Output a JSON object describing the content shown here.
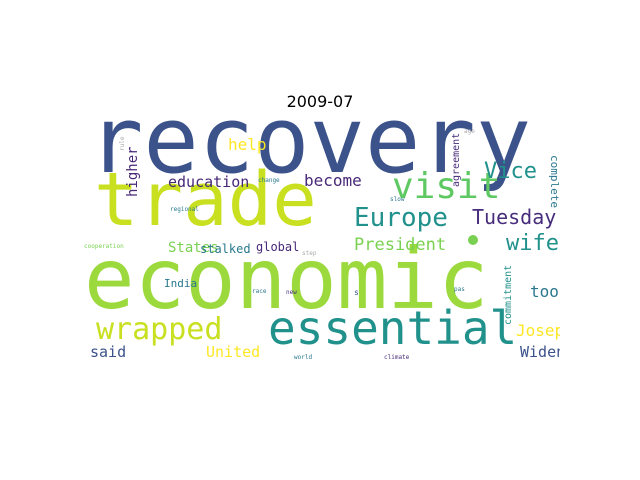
{
  "title": "2009-07",
  "colors": {
    "navy": "#3b528b",
    "purple": "#472d7b",
    "dark_purple": "#482878",
    "teal": "#21918c",
    "teal2": "#2a788e",
    "green": "#5ec962",
    "light_green": "#7ad151",
    "yellow_green": "#c8e020",
    "yellow": "#fde725",
    "bright_green": "#9bd93c"
  },
  "words": [
    {
      "text": "recovery"
    },
    {
      "text": "trade"
    },
    {
      "text": "economic"
    },
    {
      "text": "essential"
    },
    {
      "text": "visit"
    },
    {
      "text": "Europe"
    },
    {
      "text": "wrapped"
    },
    {
      "text": "Tuesday"
    },
    {
      "text": "Vice"
    },
    {
      "text": "wife"
    },
    {
      "text": "President"
    },
    {
      "text": "education"
    },
    {
      "text": "become"
    },
    {
      "text": "help"
    },
    {
      "text": "higher"
    },
    {
      "text": "States"
    },
    {
      "text": "stalked"
    },
    {
      "text": "global"
    },
    {
      "text": "India"
    },
    {
      "text": "tool"
    },
    {
      "text": "Joseph"
    },
    {
      "text": "said"
    },
    {
      "text": "United"
    },
    {
      "text": "Widen"
    },
    {
      "text": "agreement"
    },
    {
      "text": "complete"
    },
    {
      "text": "commitment"
    },
    {
      "text": "change"
    },
    {
      "text": "regional"
    },
    {
      "text": "cooperation"
    },
    {
      "text": "slow"
    },
    {
      "text": "step"
    },
    {
      "text": "rule"
    },
    {
      "text": "race"
    },
    {
      "text": "new"
    },
    {
      "text": "s"
    },
    {
      "text": "pas"
    },
    {
      "text": "world"
    },
    {
      "text": "climate"
    },
    {
      "text": "ago"
    }
  ]
}
